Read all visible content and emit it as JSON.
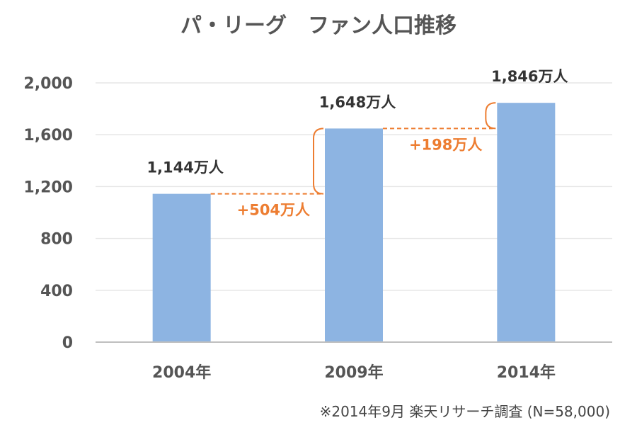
{
  "chart_data": {
    "type": "bar",
    "title": "パ・リーグ　ファン人口推移",
    "categories": [
      "2004年",
      "2009年",
      "2014年"
    ],
    "values": [
      1144,
      1648,
      1846
    ],
    "data_labels": [
      "1,144万人",
      "1,648万人",
      "1,846万人"
    ],
    "ylim": [
      0,
      2000
    ],
    "yticks": [
      0,
      400,
      800,
      1200,
      1600,
      2000
    ],
    "ytick_labels": [
      "0",
      "400",
      "800",
      "1,200",
      "1,600",
      "2,000"
    ],
    "grid": true,
    "annotations": [
      {
        "from": 0,
        "to": 1,
        "text": "+504万人"
      },
      {
        "from": 1,
        "to": 2,
        "text": "+198万人"
      }
    ],
    "note": "※2014年9月 楽天リサーチ調査 (N=58,000)"
  },
  "colors": {
    "bar": "#8DB4E2",
    "accent": "#ED7D31",
    "grid": "#E6E6E6",
    "axis": "#BFBFBF"
  }
}
